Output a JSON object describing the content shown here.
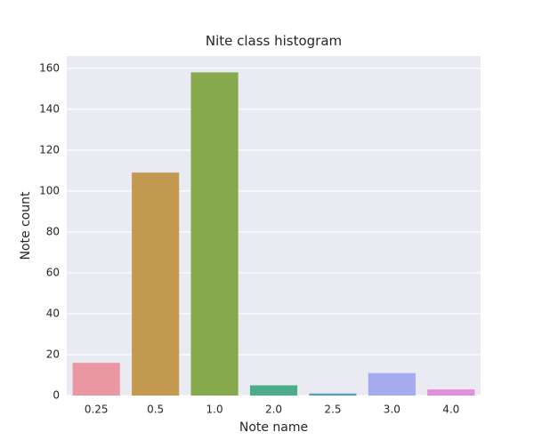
{
  "chart_data": {
    "type": "bar",
    "title": "Nite class histogram",
    "xlabel": "Note name",
    "ylabel": "Note count",
    "categories": [
      "0.25",
      "0.5",
      "1.0",
      "2.0",
      "2.5",
      "3.0",
      "4.0"
    ],
    "values": [
      16,
      109,
      158,
      5,
      1,
      11,
      3
    ],
    "ylim": [
      0,
      166
    ],
    "yticks": [
      0,
      20,
      40,
      60,
      80,
      100,
      120,
      140,
      160
    ],
    "grid": true,
    "legend": "none",
    "colors": {
      "background": "#eaeaf2",
      "grid": "#ffffff",
      "bars": [
        "#ea96a3",
        "#c39a4f",
        "#86a94e",
        "#4aac8b",
        "#4fa7b9",
        "#a5abef",
        "#e38ddd"
      ]
    }
  }
}
